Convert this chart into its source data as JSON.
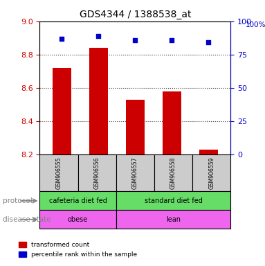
{
  "title": "GDS4344 / 1388538_at",
  "samples": [
    "GSM906555",
    "GSM906556",
    "GSM906557",
    "GSM906558",
    "GSM906559"
  ],
  "bar_values": [
    8.72,
    8.84,
    8.53,
    8.58,
    8.23
  ],
  "percentile_values": [
    87,
    89,
    86,
    86,
    84
  ],
  "ylim_left": [
    8.2,
    9.0
  ],
  "ylim_right": [
    0,
    100
  ],
  "yticks_left": [
    8.2,
    8.4,
    8.6,
    8.8,
    9.0
  ],
  "yticks_right": [
    0,
    25,
    50,
    75,
    100
  ],
  "bar_color": "#cc0000",
  "scatter_color": "#0000cc",
  "bar_width": 0.5,
  "protocol_labels": [
    "cafeteria diet fed",
    "standard diet fed"
  ],
  "protocol_ranges": [
    [
      0,
      2
    ],
    [
      2,
      5
    ]
  ],
  "protocol_color": "#66dd66",
  "disease_labels": [
    "obese",
    "lean"
  ],
  "disease_ranges": [
    [
      0,
      2
    ],
    [
      2,
      5
    ]
  ],
  "disease_color": "#ee66ee",
  "sample_bg_color": "#cccccc",
  "legend_red_label": "transformed count",
  "legend_blue_label": "percentile rank within the sample",
  "left_axis_color": "#cc0000",
  "right_axis_color": "#0000cc",
  "dotted_grid_color": "#333333",
  "percentile_scale": 100
}
